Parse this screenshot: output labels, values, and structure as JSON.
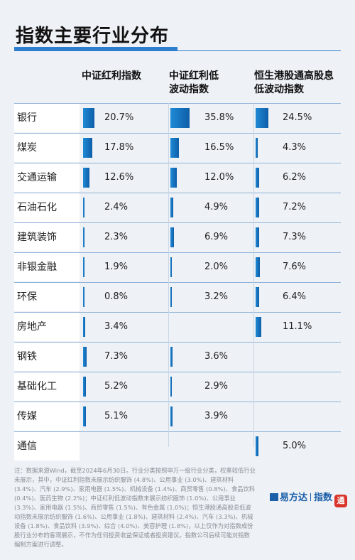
{
  "title": "指数主要行业分布",
  "chart_data": {
    "type": "table",
    "columns": [
      "中证红利指数",
      "中证红利低波动指数",
      "恒生港股通高股息低波动指数"
    ],
    "column_lines": [
      [
        "中证红利指数"
      ],
      [
        "中证红利低",
        "波动指数"
      ],
      [
        "恒生港股通高股息",
        "低波动指数"
      ]
    ],
    "rows": [
      {
        "label": "银行",
        "values": [
          20.7,
          35.8,
          24.5
        ]
      },
      {
        "label": "煤炭",
        "values": [
          17.8,
          16.5,
          4.3
        ]
      },
      {
        "label": "交通运输",
        "values": [
          12.6,
          12.0,
          6.2
        ]
      },
      {
        "label": "石油石化",
        "values": [
          2.4,
          4.9,
          7.2
        ]
      },
      {
        "label": "建筑装饰",
        "values": [
          2.3,
          6.9,
          7.3
        ]
      },
      {
        "label": "非银金融",
        "values": [
          1.9,
          2.0,
          7.6
        ]
      },
      {
        "label": "环保",
        "values": [
          0.8,
          3.2,
          6.4
        ]
      },
      {
        "label": "房地产",
        "values": [
          3.4,
          null,
          11.1
        ]
      },
      {
        "label": "钢铁",
        "values": [
          7.3,
          3.6,
          null
        ]
      },
      {
        "label": "基础化工",
        "values": [
          5.2,
          2.9,
          null
        ]
      },
      {
        "label": "传媒",
        "values": [
          5.1,
          3.9,
          null
        ]
      },
      {
        "label": "通信",
        "values": [
          null,
          null,
          5.0
        ]
      }
    ],
    "unit": "%",
    "value_range": [
      0,
      40
    ]
  },
  "note": "注：数据来源Wind，截至2024年6月30日。行业分类按照申万一级行业分类，权重较低行业未展示，其中，中证红利指数未展示纺织服饰 (4.8%)、公用事业 (3.0%)、建筑材料 (3.4%)、汽车 (2.9%)、家用电器 (1.5%)、机械设备 (1.4%)、商贸零售 (0.8%)、食品饮料 (0.4%)、医药生物 (2.2%)；中证红利低波动指数未展示纺织服饰 (1.0%)、公用事业 (3.3%)、家用电器 (1.5%)、商贸零售 (1.5%)、有色金属 (1.0%)；恒生港股通高股息低波动指数未展示纺织服饰 (1.6%)、公用事业 (1.8%)、建筑材料 (2.4%)、汽车 (3.3%)、机械设备 (1.8%)、食品饮料 (3.9%)、综合 (4.0%)、美容护理 (1.8%)，以上仅作为对指数成份股行业分布的客观展示，不作为任何投资收益保证或者投资建议。指数公司后续可能对指数编制方案进行调整。",
  "logo": {
    "brand": "易方达",
    "sub": "指数",
    "stamp": "通"
  }
}
